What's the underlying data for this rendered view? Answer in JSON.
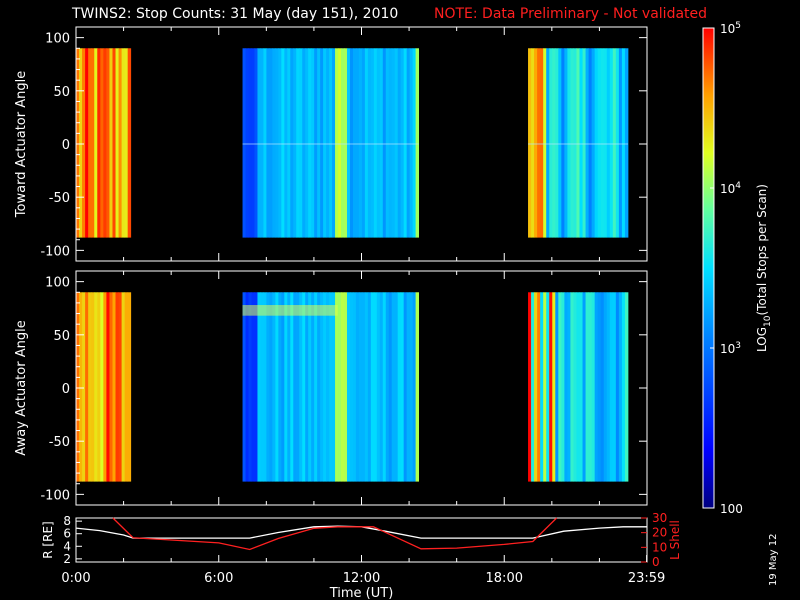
{
  "title": {
    "main": "TWINS2: Stop Counts: 31 May (day 151), 2010",
    "note": "NOTE: Data Preliminary - Not validated"
  },
  "date_stamp": "19 May 12",
  "colors": {
    "note": "#ff1f1f",
    "background": "#000000",
    "axes": "#ffffff",
    "r_line": "#ffffff",
    "l_shell_line": "#ff2020"
  },
  "chart_data": [
    {
      "type": "heatmap",
      "panel": "toward",
      "ylabel": "Toward Actuator Angle",
      "xlim_hours": [
        0,
        24
      ],
      "ylim": [
        -110,
        110
      ],
      "y_ticks": [
        "100",
        "50",
        "0",
        "-50",
        "-100"
      ],
      "angle_range": [
        -88,
        90
      ],
      "data_intervals_ut_hours": [
        [
          0.0,
          2.3
        ],
        [
          7.0,
          14.4
        ],
        [
          19.0,
          23.2
        ]
      ],
      "features": {
        "bright_bands_ut_hours": [
          11.0,
          11.3,
          14.35
        ],
        "center_angle_stripe": 0
      }
    },
    {
      "type": "heatmap",
      "panel": "away",
      "ylabel": "Away Actuator Angle",
      "xlim_hours": [
        0,
        24
      ],
      "ylim": [
        -110,
        110
      ],
      "y_ticks": [
        "100",
        "50",
        "0",
        "-50",
        "-100"
      ],
      "angle_range": [
        -88,
        90
      ],
      "data_intervals_ut_hours": [
        [
          0.0,
          2.3
        ],
        [
          7.0,
          14.4
        ],
        [
          19.0,
          23.2
        ]
      ],
      "features": {
        "bright_bands_ut_hours": [
          11.0,
          11.3,
          14.35
        ],
        "enhanced_angle_band": [
          68,
          78
        ]
      }
    },
    {
      "type": "line",
      "panel": "orbit",
      "xlabel": "Time (UT)",
      "x_tick_labels": [
        "0:00",
        "6:00",
        "12:00",
        "18:00",
        "23:59"
      ],
      "x_tick_hours": [
        0,
        6,
        12,
        18,
        23.983
      ],
      "ylabel_left": "R [RE]",
      "ylabel_right": "L Shell",
      "ylim_left": [
        1.5,
        8.5
      ],
      "ylim_right": [
        0,
        30
      ],
      "y_ticks_left": [
        "8",
        "6",
        "4",
        "2"
      ],
      "y_ticks_right": [
        "30",
        "20",
        "10",
        "0"
      ],
      "series": [
        {
          "name": "R",
          "axis": "left",
          "x": [
            0,
            1,
            2,
            2.4,
            4,
            6,
            7.3,
            8.5,
            10,
            11,
            12,
            13,
            14.5,
            16,
            18,
            19.2,
            20.5,
            22,
            23,
            24
          ],
          "values": [
            6.9,
            6.5,
            5.8,
            5.3,
            5.3,
            5.3,
            5.3,
            6.2,
            7.1,
            7.2,
            7.1,
            6.4,
            5.3,
            5.3,
            5.3,
            5.3,
            6.4,
            6.9,
            7.1,
            7.1
          ]
        },
        {
          "name": "L Shell",
          "axis": "right",
          "x": [
            1.55,
            2.4,
            4,
            6,
            7.3,
            8.5,
            10,
            11,
            12.5,
            14.5,
            16,
            18,
            19.2,
            20.2
          ],
          "values": [
            30,
            16.5,
            15,
            13,
            8.5,
            16,
            23,
            24,
            24,
            9,
            9.5,
            12,
            14,
            30
          ]
        }
      ]
    }
  ],
  "colorbar": {
    "label": "LOG10(Total Stops per Scan)",
    "label_parts": {
      "prefix": "LOG",
      "sub": "10",
      "suffix": "(Total Stops per Scan)"
    },
    "range": [
      100,
      100000
    ],
    "ticks": [
      {
        "base": "10",
        "exp": "5",
        "value": 100000
      },
      {
        "base": "10",
        "exp": "4",
        "value": 10000
      },
      {
        "base": "10",
        "exp": "3",
        "value": 1000
      },
      {
        "base": "100",
        "exp": "",
        "value": 100
      }
    ],
    "scale": "log"
  }
}
